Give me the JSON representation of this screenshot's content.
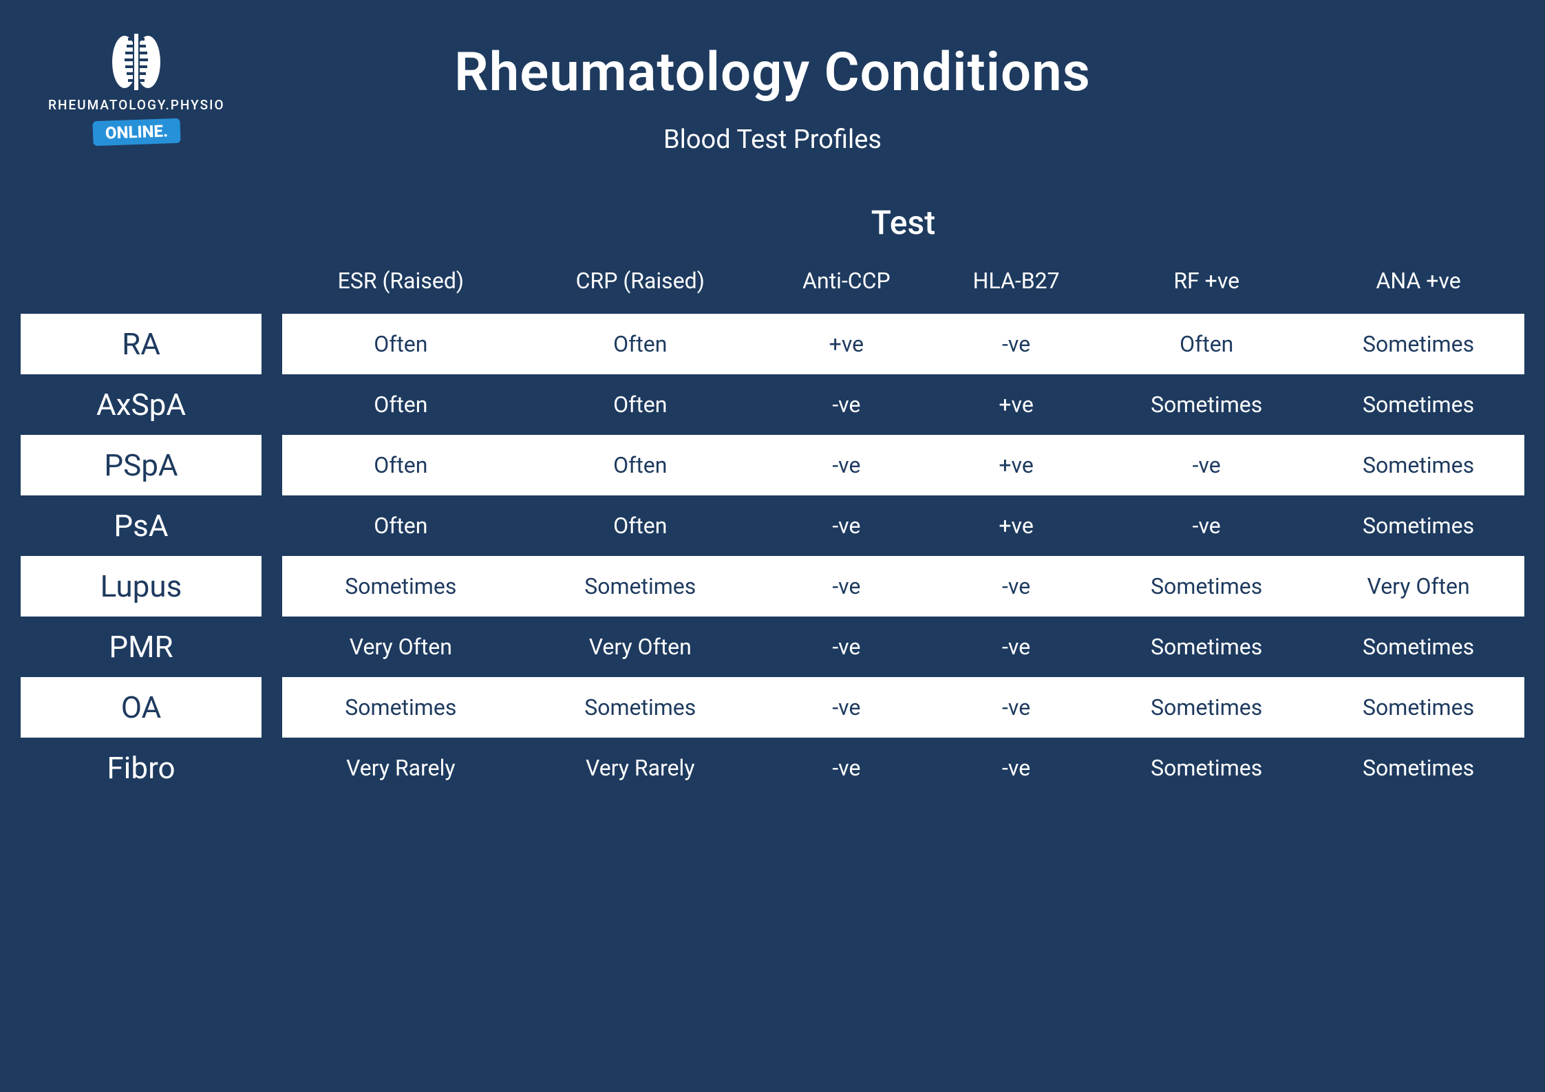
{
  "logo": {
    "brand_text": "RHEUMATOLOGY.PHYSIO",
    "badge_text": "ONLINE."
  },
  "header": {
    "title": "Rheumatology Conditions",
    "subtitle": "Blood Test Profiles"
  },
  "table": {
    "group_heading": "Test",
    "columns": [
      "ESR (Raised)",
      "CRP (Raised)",
      "Anti-CCP",
      "HLA-B27",
      "RF +ve",
      "ANA +ve"
    ],
    "rows": [
      {
        "label": "RA",
        "cells": [
          "Often",
          "Often",
          "+ve",
          "-ve",
          "Often",
          "Sometimes"
        ]
      },
      {
        "label": "AxSpA",
        "cells": [
          "Often",
          "Often",
          "-ve",
          "+ve",
          "Sometimes",
          "Sometimes"
        ]
      },
      {
        "label": "PSpA",
        "cells": [
          "Often",
          "Often",
          "-ve",
          "+ve",
          "-ve",
          "Sometimes"
        ]
      },
      {
        "label": "PsA",
        "cells": [
          "Often",
          "Often",
          "-ve",
          "+ve",
          "-ve",
          "Sometimes"
        ]
      },
      {
        "label": "Lupus",
        "cells": [
          "Sometimes",
          "Sometimes",
          "-ve",
          "-ve",
          "Sometimes",
          "Very Often"
        ]
      },
      {
        "label": "PMR",
        "cells": [
          "Very Often",
          "Very Often",
          "-ve",
          "-ve",
          "Sometimes",
          "Sometimes"
        ]
      },
      {
        "label": "OA",
        "cells": [
          "Sometimes",
          "Sometimes",
          "-ve",
          "-ve",
          "Sometimes",
          "Sometimes"
        ]
      },
      {
        "label": "Fibro",
        "cells": [
          "Very Rarely",
          "Very Rarely",
          "-ve",
          "-ve",
          "Sometimes",
          "Sometimes"
        ]
      }
    ]
  },
  "style": {
    "background_color": "#1e3a5f",
    "row_white_bg": "#ffffff",
    "row_white_fg": "#1e3a5f",
    "row_dark_fg": "#ffffff",
    "badge_bg": "#2691d9",
    "title_fontsize": 78,
    "subtitle_fontsize": 38,
    "group_heading_fontsize": 48,
    "header_fontsize": 32,
    "row_label_fontsize": 44,
    "cell_fontsize": 32
  }
}
